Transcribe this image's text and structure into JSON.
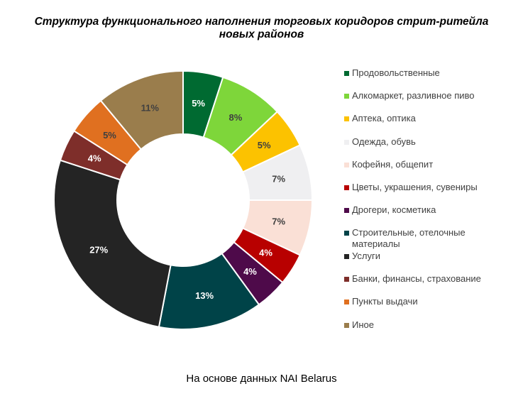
{
  "chart_data": {
    "type": "pie",
    "title": "Структура функционального наполнения торговых коридоров стрит-ритейла новых районов",
    "title_lines": [
      "Структура функционального наполнения торговых коридоров стрит-ритейла",
      "новых районов"
    ],
    "source_note": "На основе данных NAI Belarus",
    "legend_position": "right",
    "categories": [
      "Продовольственные",
      "Алкомаркет, разливное пиво",
      "Аптека, оптика",
      "Одежда, обувь",
      "Кофейня, общепит",
      "Цветы, украшения, сувениры",
      "Дрогери, косметика",
      "Строительные, отелочные материалы",
      "Услуги",
      "Банки, финансы, страхование",
      "Пункты выдачи",
      "Иное"
    ],
    "values": [
      5,
      8,
      5,
      7,
      7,
      4,
      4,
      13,
      27,
      4,
      5,
      11
    ],
    "data_labels": [
      "5%",
      "8%",
      "5%",
      "7%",
      "7%",
      "4%",
      "4%",
      "13%",
      "27%",
      "4%",
      "5%",
      "11%"
    ],
    "colors": [
      "#006a31",
      "#7ed63a",
      "#fcc200",
      "#efeff1",
      "#fae0d6",
      "#b80000",
      "#4e0a4a",
      "#004348",
      "#242424",
      "#7e2e2a",
      "#e07020",
      "#9a7d4c"
    ],
    "label_colors": [
      "#ffffff",
      "#404040",
      "#404040",
      "#404040",
      "#404040",
      "#ffffff",
      "#ffffff",
      "#ffffff",
      "#ffffff",
      "#ffffff",
      "#404040",
      "#404040"
    ],
    "unit": "%"
  }
}
